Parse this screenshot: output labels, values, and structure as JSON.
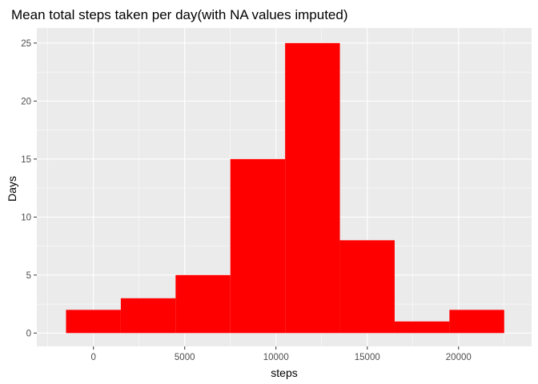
{
  "chart_data": {
    "type": "bar",
    "title": "Mean total steps taken per day(with NA values imputed)",
    "xlabel": "steps",
    "ylabel": "Days",
    "xlim": [
      -3100,
      24000
    ],
    "ylim": [
      -1.15,
      26.3
    ],
    "bin_width": 3000,
    "bins": [
      {
        "x_start": -1500,
        "x_end": 1500,
        "value": 2
      },
      {
        "x_start": 1500,
        "x_end": 4500,
        "value": 3
      },
      {
        "x_start": 4500,
        "x_end": 7500,
        "value": 5
      },
      {
        "x_start": 7500,
        "x_end": 10500,
        "value": 15
      },
      {
        "x_start": 10500,
        "x_end": 13500,
        "value": 25
      },
      {
        "x_start": 13500,
        "x_end": 16500,
        "value": 8
      },
      {
        "x_start": 16500,
        "x_end": 19500,
        "value": 1
      },
      {
        "x_start": 19500,
        "x_end": 22500,
        "value": 2
      }
    ],
    "x_ticks": [
      {
        "value": 0,
        "label": "0"
      },
      {
        "value": 5000,
        "label": "5000"
      },
      {
        "value": 10000,
        "label": "10000"
      },
      {
        "value": 15000,
        "label": "15000"
      },
      {
        "value": 20000,
        "label": "20000"
      }
    ],
    "y_ticks": [
      {
        "value": 0,
        "label": "0"
      },
      {
        "value": 5,
        "label": "5"
      },
      {
        "value": 10,
        "label": "10"
      },
      {
        "value": 15,
        "label": "15"
      },
      {
        "value": 20,
        "label": "20"
      },
      {
        "value": 25,
        "label": "25"
      }
    ],
    "grid": true,
    "legend": "none",
    "colors": {
      "bar_fill": "#ff0000",
      "panel_background": "#ebebeb",
      "grid_major": "#ffffff",
      "tick_text": "#4d4d4d",
      "tick_mark": "#333333"
    }
  }
}
